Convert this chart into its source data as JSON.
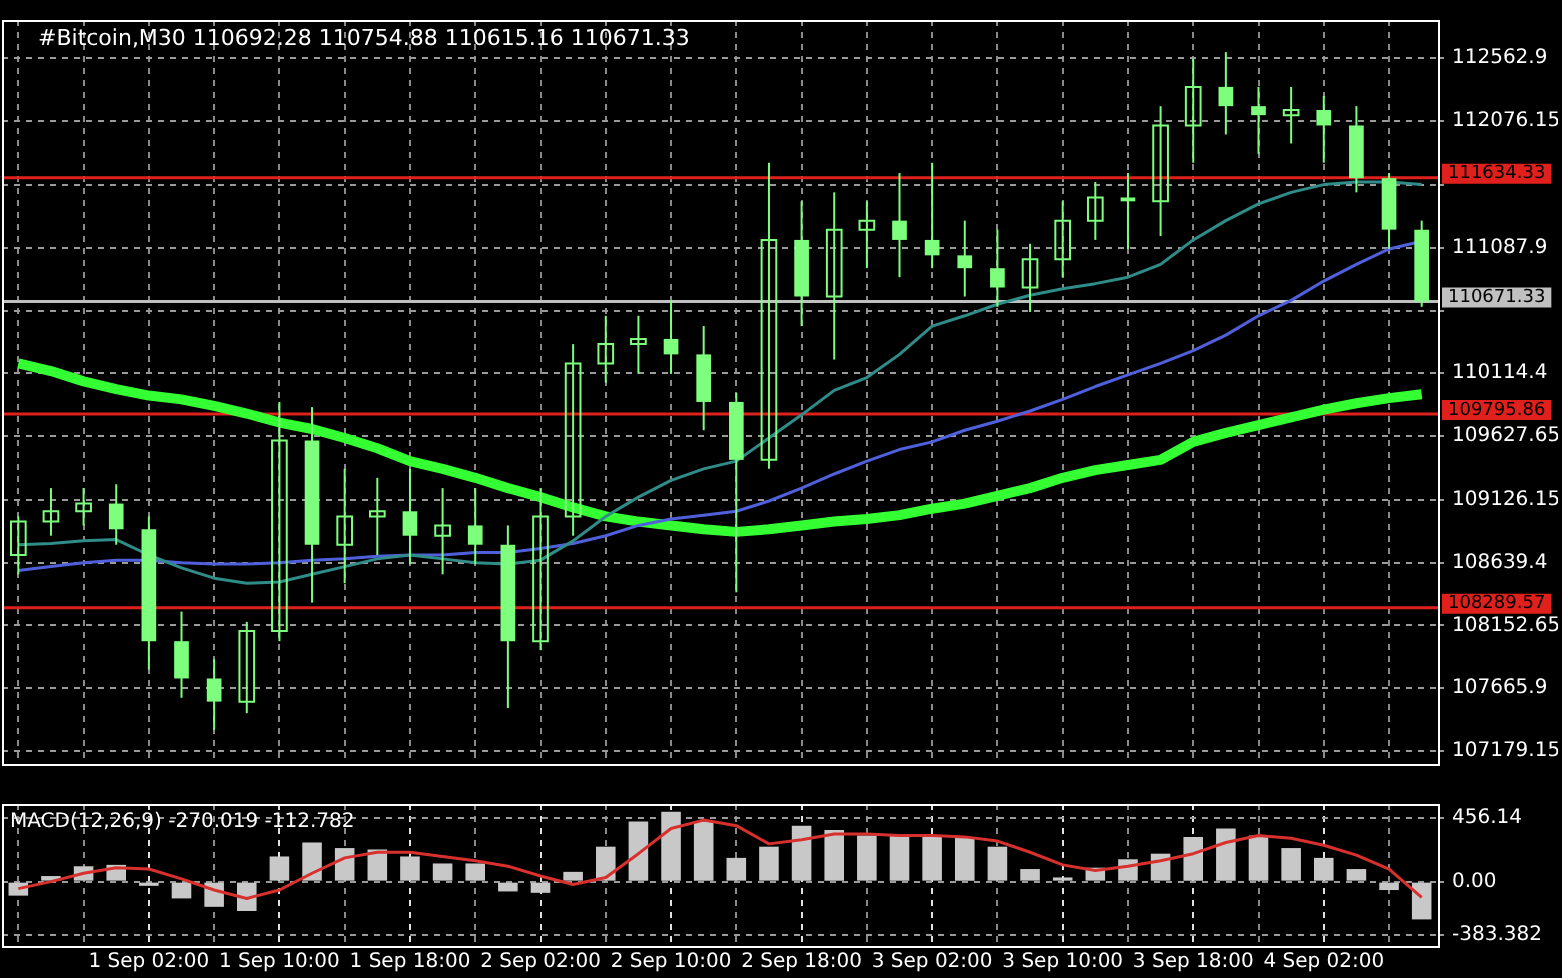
{
  "chart_data": [
    {
      "type": "candlestick",
      "title": "#Bitcoin,M30 110692.28 110754.88 110615.16 110671.33",
      "categories": [
        null,
        null,
        null,
        null,
        null,
        null,
        null,
        null,
        null,
        null,
        null,
        null,
        null,
        null,
        null,
        null,
        null,
        null,
        null,
        null,
        null,
        null,
        null,
        null,
        null,
        null,
        null,
        null,
        null,
        null,
        null,
        null,
        null,
        null,
        null,
        null,
        null,
        null,
        null,
        null,
        null,
        null,
        null,
        null
      ],
      "ohlc": [
        [
          108700,
          109000,
          108550,
          108960
        ],
        [
          108960,
          109220,
          108850,
          109040
        ],
        [
          109040,
          109220,
          108930,
          109100
        ],
        [
          109100,
          109250,
          108780,
          108900
        ],
        [
          108900,
          109000,
          107810,
          108030
        ],
        [
          108030,
          108260,
          107590,
          107740
        ],
        [
          107740,
          107890,
          107340,
          107560
        ],
        [
          107560,
          108180,
          107470,
          108110
        ],
        [
          108110,
          109890,
          108030,
          109590
        ],
        [
          109590,
          109850,
          108330,
          108780
        ],
        [
          108780,
          109370,
          108480,
          109000
        ],
        [
          109000,
          109300,
          108700,
          109040
        ],
        [
          109040,
          109370,
          108630,
          108850
        ],
        [
          108850,
          109220,
          108550,
          108930
        ],
        [
          108930,
          109220,
          108630,
          108780
        ],
        [
          108780,
          108930,
          107510,
          108030
        ],
        [
          108030,
          109220,
          107960,
          109000
        ],
        [
          109000,
          110340,
          108850,
          110190
        ],
        [
          110190,
          110560,
          110040,
          110340
        ],
        [
          110340,
          110560,
          110110,
          110380
        ],
        [
          110380,
          110680,
          110110,
          110260
        ],
        [
          110260,
          110480,
          109670,
          109890
        ],
        [
          109890,
          109960,
          108410,
          109440
        ],
        [
          109440,
          111750,
          109370,
          111150
        ],
        [
          111150,
          111450,
          110480,
          110710
        ],
        [
          110710,
          111520,
          110220,
          111230
        ],
        [
          111230,
          111450,
          110930,
          111300
        ],
        [
          111300,
          111670,
          110860,
          111150
        ],
        [
          111150,
          111750,
          110930,
          111030
        ],
        [
          111030,
          111300,
          110710,
          110930
        ],
        [
          110930,
          111230,
          110630,
          110780
        ],
        [
          110780,
          111120,
          110590,
          111000
        ],
        [
          111000,
          111450,
          110860,
          111300
        ],
        [
          111300,
          111600,
          111150,
          111480
        ],
        [
          111480,
          111670,
          111080,
          111450
        ],
        [
          111450,
          112190,
          111180,
          112040
        ],
        [
          112040,
          112560,
          111750,
          112340
        ],
        [
          112340,
          112610,
          111970,
          112190
        ],
        [
          112190,
          112340,
          111820,
          112120
        ],
        [
          112120,
          112340,
          111900,
          112160
        ],
        [
          112160,
          112270,
          111750,
          112040
        ],
        [
          112040,
          112190,
          111520,
          111630
        ],
        [
          111630,
          111670,
          111080,
          111230
        ],
        [
          111230,
          111300,
          110630,
          110671.33
        ]
      ],
      "color": "#7dff7d",
      "series": [
        {
          "type": "line",
          "color": "#2f8c88",
          "values": [
            108780,
            108790,
            108810,
            108820,
            108700,
            108600,
            108520,
            108480,
            108490,
            108550,
            108610,
            108670,
            108700,
            108670,
            108640,
            108630,
            108660,
            108810,
            109000,
            109150,
            109280,
            109370,
            109430,
            109610,
            109790,
            109980,
            110080,
            110260,
            110480,
            110560,
            110650,
            110720,
            110770,
            110810,
            110860,
            110960,
            111150,
            111300,
            111430,
            111520,
            111580,
            111600,
            111600,
            111580
          ]
        },
        {
          "type": "line",
          "color": "#5060dc",
          "values": [
            108580,
            108610,
            108640,
            108660,
            108660,
            108640,
            108630,
            108630,
            108640,
            108660,
            108670,
            108690,
            108700,
            108700,
            108720,
            108720,
            108750,
            108790,
            108850,
            108930,
            108980,
            109010,
            109040,
            109120,
            109220,
            109330,
            109430,
            109520,
            109580,
            109670,
            109740,
            109820,
            109910,
            110010,
            110100,
            110190,
            110290,
            110410,
            110560,
            110680,
            110830,
            110960,
            111080,
            111140
          ]
        },
        {
          "type": "line",
          "color": "#33ff33",
          "values": [
            110190,
            110130,
            110050,
            109990,
            109940,
            109910,
            109860,
            109800,
            109730,
            109680,
            109610,
            109530,
            109430,
            109370,
            109300,
            109220,
            109150,
            109070,
            109000,
            108960,
            108930,
            108900,
            108880,
            108900,
            108930,
            108960,
            108980,
            109010,
            109060,
            109100,
            109160,
            109220,
            109300,
            109360,
            109400,
            109440,
            109580,
            109650,
            109710,
            109770,
            109830,
            109880,
            109920,
            109950
          ]
        }
      ],
      "ylim": [
        107075,
        112860
      ],
      "yticks": [
        112562.9,
        112076.15,
        {
          "value": 111574.65,
          "label": null
        },
        111087.9,
        {
          "value": 110601.15,
          "label": null
        },
        110114.4,
        109627.65,
        109126.15,
        108639.4,
        108152.65,
        107665.9,
        107179.15
      ],
      "ref_lines": [
        {
          "axis": "y",
          "value": 111634.33,
          "label": "111634.33",
          "color": "#e0201c"
        },
        {
          "axis": "y",
          "value": 109795.86,
          "label": "109795.86",
          "color": "#e0201c"
        },
        {
          "axis": "y",
          "value": 108289.57,
          "label": "108289.57",
          "color": "#e0201c"
        },
        {
          "axis": "y",
          "value": 110671.33,
          "label": "110671.33",
          "color": "#c0c0c0"
        }
      ],
      "grid": true,
      "tick_labels": "y",
      "legend": false
    },
    {
      "type": "bar",
      "title": "MACD(12,26,9) -270.019 -112.782",
      "categories": [
        null,
        null,
        null,
        null,
        "1 Sep 02:00",
        null,
        null,
        null,
        "1 Sep 10:00",
        null,
        null,
        null,
        "1 Sep 18:00",
        null,
        null,
        null,
        "2 Sep 02:00",
        null,
        null,
        null,
        "2 Sep 10:00",
        null,
        null,
        null,
        "2 Sep 18:00",
        null,
        null,
        null,
        "3 Sep 02:00",
        null,
        null,
        null,
        "3 Sep 10:00",
        null,
        null,
        null,
        "3 Sep 18:00",
        null,
        null,
        null,
        "4 Sep 02:00",
        null,
        null,
        null
      ],
      "series": [
        {
          "type": "bar",
          "color": "#c8c8c8",
          "values": [
            -100,
            40,
            110,
            120,
            -30,
            -120,
            -180,
            -210,
            180,
            280,
            240,
            230,
            180,
            130,
            130,
            -70,
            -80,
            70,
            250,
            430,
            500,
            430,
            170,
            250,
            400,
            370,
            330,
            330,
            330,
            320,
            250,
            90,
            30,
            100,
            160,
            200,
            320,
            380,
            330,
            240,
            170,
            90,
            -60,
            -270
          ]
        },
        {
          "type": "line",
          "color": "#d8302c",
          "values": [
            -50,
            0,
            60,
            100,
            90,
            20,
            -60,
            -120,
            -60,
            60,
            170,
            210,
            210,
            180,
            150,
            110,
            40,
            -20,
            30,
            200,
            380,
            440,
            400,
            270,
            300,
            340,
            340,
            330,
            330,
            320,
            290,
            210,
            120,
            80,
            110,
            150,
            200,
            280,
            330,
            310,
            260,
            190,
            90,
            -113
          ]
        }
      ],
      "ylim": [
        -460,
        555
      ],
      "yticks": [
        456.14,
        {
          "value": 0,
          "label": "0.00"
        },
        -383.382
      ],
      "grid": true,
      "legend": false
    }
  ]
}
